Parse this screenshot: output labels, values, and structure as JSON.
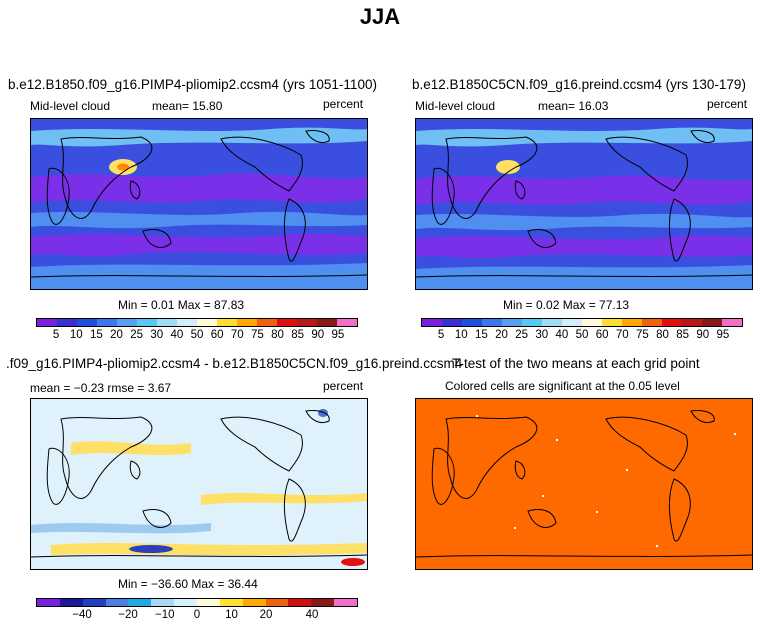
{
  "figure": {
    "title": "JJA"
  },
  "panels": [
    {
      "id": "p1",
      "title": "b.e12.B1850.f09_g16.PIMP4-pliomip2.ccsm4 (yrs 1051-1100)",
      "variable": "Mid-level cloud",
      "stat": "mean=   15.80",
      "units": "percent",
      "minmax": "Min =    0.01  Max =   87.83"
    },
    {
      "id": "p2",
      "title": "b.e12.B1850C5CN.f09_g16.preind.ccsm4 (yrs 130-179)",
      "variable": "Mid-level cloud",
      "stat": "mean=   16.03",
      "units": "percent",
      "minmax": "Min =    0.02  Max =   77.13"
    },
    {
      "id": "p3",
      "title": ".f09_g16.PIMP4-pliomip2.ccsm4 - b.e12.B1850C5CN.f09_g16.preind.ccsm4",
      "stat": "mean =  −0.23     rmse =     3.67",
      "units": "percent",
      "minmax": "Min = −36.60  Max =   36.44"
    },
    {
      "id": "p4",
      "title": "T-test of the two means at each grid point",
      "subtitle": "Colored cells are significant at the 0.05 level"
    }
  ],
  "colorbars": {
    "cloud": {
      "labels": [
        "5",
        "10",
        "15",
        "20",
        "25",
        "30",
        "40",
        "50",
        "60",
        "70",
        "75",
        "80",
        "85",
        "90",
        "95"
      ],
      "colors": [
        "#7a1fe0",
        "#3a2fd0",
        "#1f4fe0",
        "#3f78ea",
        "#5aa0f0",
        "#58c8f5",
        "#a0dcf5",
        "#d2eefa",
        "#fffbd8",
        "#ffdd33",
        "#ffa800",
        "#f06010",
        "#e01010",
        "#b81818",
        "#8a1a1a",
        "#f070c8"
      ]
    },
    "diff": {
      "labels": [
        "−40",
        "−20",
        "−10",
        "0",
        "10",
        "20",
        "40"
      ],
      "colors": [
        "#7a1fe0",
        "#1a1a9a",
        "#2040c0",
        "#4a80e0",
        "#20a8e8",
        "#a8d8f5",
        "#d8f0fb",
        "#fffbd8",
        "#ffe033",
        "#ffaa00",
        "#f06010",
        "#d01010",
        "#8a1a1a",
        "#f070c8"
      ]
    }
  },
  "map_colors": {
    "deep": "#7a30e8",
    "low": "#3a4fe0",
    "mid": "#4f8ff0",
    "light": "#6fbff5",
    "diff_bg": "#dff2fb",
    "diff_pos": "#ffe066",
    "diff_neg": "#9ccaf0",
    "ttest": "#ff6a00",
    "land": "#000000"
  }
}
